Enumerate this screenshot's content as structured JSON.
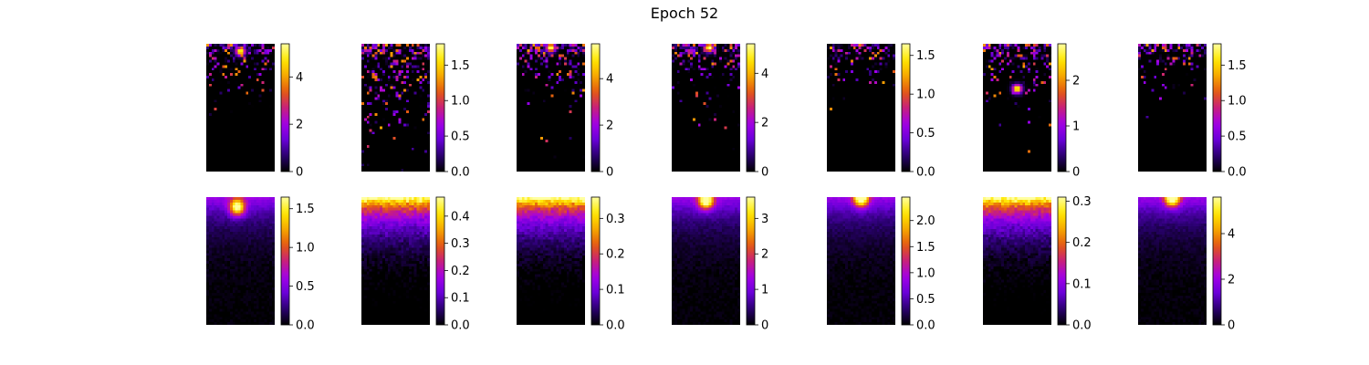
{
  "figure": {
    "title": "Epoch 52"
  },
  "palette": [
    "#000000",
    "#2a0070",
    "#6a00d8",
    "#a200e8",
    "#c8207a",
    "#e45a10",
    "#f6a800",
    "#ffe800",
    "#ffffa0"
  ],
  "chart_data": [
    {
      "type": "heatmap",
      "row": "top",
      "col": 1,
      "colormap": "gnuplot",
      "vmin": 0,
      "vmax": 5.4,
      "colorbar_ticks": [
        "0",
        "2",
        "4"
      ],
      "pattern": "sparse",
      "hotspot": {
        "x": 0.5,
        "y": 0.05
      }
    },
    {
      "type": "heatmap",
      "row": "top",
      "col": 2,
      "colormap": "gnuplot",
      "vmin": 0,
      "vmax": 1.8,
      "colorbar_ticks": [
        "0.0",
        "0.5",
        "1.0",
        "1.5"
      ],
      "pattern": "sparse-scattered"
    },
    {
      "type": "heatmap",
      "row": "top",
      "col": 3,
      "colormap": "gnuplot",
      "vmin": 0,
      "vmax": 5.5,
      "colorbar_ticks": [
        "0",
        "2",
        "4"
      ],
      "pattern": "sparse",
      "hotspot": {
        "x": 0.5,
        "y": 0.02
      }
    },
    {
      "type": "heatmap",
      "row": "top",
      "col": 4,
      "colormap": "gnuplot",
      "vmin": 0,
      "vmax": 5.2,
      "colorbar_ticks": [
        "0",
        "2",
        "4"
      ],
      "pattern": "sparse",
      "hotspot": {
        "x": 0.55,
        "y": 0.02
      }
    },
    {
      "type": "heatmap",
      "row": "top",
      "col": 5,
      "colormap": "gnuplot",
      "vmin": 0,
      "vmax": 1.65,
      "colorbar_ticks": [
        "0.0",
        "0.5",
        "1.0",
        "1.5"
      ],
      "pattern": "sparse-top"
    },
    {
      "type": "heatmap",
      "row": "top",
      "col": 6,
      "colormap": "gnuplot",
      "vmin": 0,
      "vmax": 2.8,
      "colorbar_ticks": [
        "0",
        "1",
        "2"
      ],
      "pattern": "sparse",
      "hotspot": {
        "x": 0.5,
        "y": 0.35
      }
    },
    {
      "type": "heatmap",
      "row": "top",
      "col": 7,
      "colormap": "gnuplot",
      "vmin": 0,
      "vmax": 1.8,
      "colorbar_ticks": [
        "0.0",
        "0.5",
        "1.0",
        "1.5"
      ],
      "pattern": "sparse-top"
    },
    {
      "type": "heatmap",
      "row": "bottom",
      "col": 1,
      "colormap": "gnuplot",
      "vmin": 0,
      "vmax": 1.65,
      "colorbar_ticks": [
        "0.0",
        "0.5",
        "1.0",
        "1.5"
      ],
      "pattern": "smooth-blob",
      "hotspot": {
        "x": 0.45,
        "y": 0.07
      }
    },
    {
      "type": "heatmap",
      "row": "bottom",
      "col": 2,
      "colormap": "gnuplot",
      "vmin": 0,
      "vmax": 0.47,
      "colorbar_ticks": [
        "0.0",
        "0.1",
        "0.2",
        "0.3",
        "0.4"
      ],
      "pattern": "smooth-band"
    },
    {
      "type": "heatmap",
      "row": "bottom",
      "col": 3,
      "colormap": "gnuplot",
      "vmin": 0,
      "vmax": 0.36,
      "colorbar_ticks": [
        "0.0",
        "0.1",
        "0.2",
        "0.3"
      ],
      "pattern": "smooth-band"
    },
    {
      "type": "heatmap",
      "row": "bottom",
      "col": 4,
      "colormap": "gnuplot",
      "vmin": 0,
      "vmax": 3.6,
      "colorbar_ticks": [
        "0",
        "1",
        "2",
        "3"
      ],
      "pattern": "smooth-blob",
      "hotspot": {
        "x": 0.5,
        "y": 0.02
      }
    },
    {
      "type": "heatmap",
      "row": "bottom",
      "col": 5,
      "colormap": "gnuplot",
      "vmin": 0,
      "vmax": 2.45,
      "colorbar_ticks": [
        "0.0",
        "0.5",
        "1.0",
        "1.5",
        "2.0"
      ],
      "pattern": "smooth-blob",
      "hotspot": {
        "x": 0.5,
        "y": 0.0
      }
    },
    {
      "type": "heatmap",
      "row": "bottom",
      "col": 6,
      "colormap": "gnuplot",
      "vmin": 0,
      "vmax": 0.31,
      "colorbar_ticks": [
        "0.0",
        "0.1",
        "0.2",
        "0.3"
      ],
      "pattern": "smooth-band"
    },
    {
      "type": "heatmap",
      "row": "bottom",
      "col": 7,
      "colormap": "gnuplot",
      "vmin": 0,
      "vmax": 5.6,
      "colorbar_ticks": [
        "0",
        "2",
        "4"
      ],
      "pattern": "smooth-blob",
      "hotspot": {
        "x": 0.5,
        "y": 0.0
      }
    }
  ]
}
